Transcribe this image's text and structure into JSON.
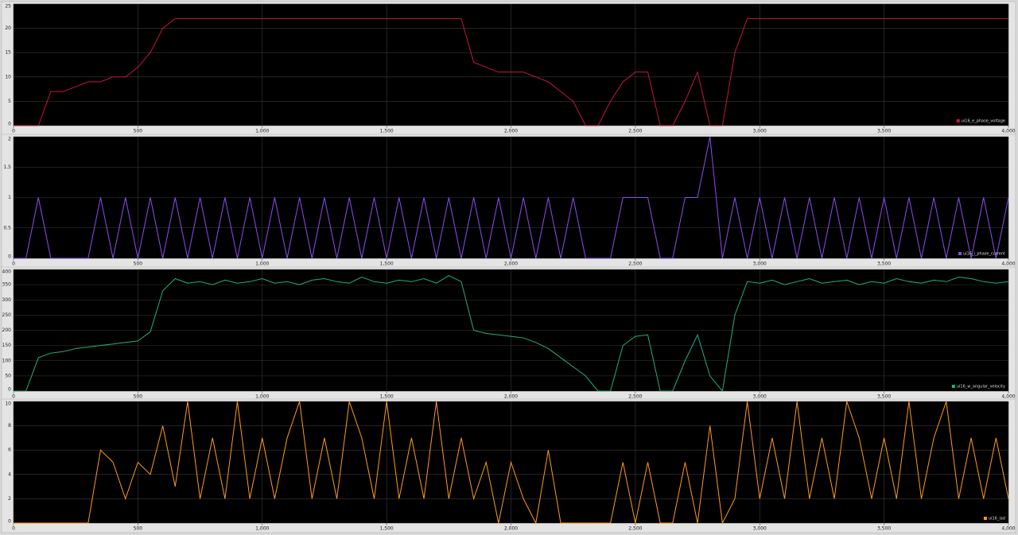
{
  "chart_data": [
    {
      "type": "line",
      "legend": "ui16_e_phase_voltage",
      "color": "#c8143c",
      "x": [
        0,
        50,
        100,
        150,
        200,
        250,
        300,
        350,
        400,
        450,
        500,
        550,
        600,
        650,
        700,
        750,
        800,
        850,
        900,
        950,
        1000,
        1050,
        1100,
        1150,
        1200,
        1250,
        1300,
        1350,
        1400,
        1450,
        1500,
        1550,
        1600,
        1650,
        1700,
        1750,
        1800,
        1850,
        1900,
        1950,
        2000,
        2050,
        2100,
        2150,
        2200,
        2250,
        2300,
        2350,
        2400,
        2450,
        2500,
        2550,
        2600,
        2650,
        2700,
        2750,
        2800,
        2850,
        2900,
        2950,
        3000,
        3050,
        3100,
        3150,
        3200,
        3250,
        3300,
        3350,
        3400,
        3450,
        3500,
        3550,
        3600,
        3650,
        3700,
        3750,
        3800,
        3850,
        3900,
        3950,
        4000
      ],
      "values": [
        0,
        0,
        0,
        7,
        7,
        8,
        9,
        9,
        10,
        10,
        12,
        15,
        20,
        22,
        22,
        22,
        22,
        22,
        22,
        22,
        22,
        22,
        22,
        22,
        22,
        22,
        22,
        22,
        22,
        22,
        22,
        22,
        22,
        22,
        22,
        22,
        22,
        13,
        12,
        11,
        11,
        11,
        10,
        9,
        7,
        5,
        0,
        0,
        5,
        9,
        11,
        11,
        0,
        0,
        5,
        11,
        0,
        0,
        15,
        22,
        22,
        22,
        22,
        22,
        22,
        22,
        22,
        22,
        22,
        22,
        22,
        22,
        22,
        22,
        22,
        22,
        22,
        22,
        22,
        22,
        22
      ],
      "xlim": [
        0,
        4000
      ],
      "xticks": [
        0,
        500,
        {
          "value": 1000,
          "label": "1,000"
        },
        {
          "value": 1500,
          "label": "1,500"
        },
        {
          "value": 2000,
          "label": "2,000"
        },
        {
          "value": 2500,
          "label": "2,500"
        },
        {
          "value": 3000,
          "label": "3,000"
        },
        {
          "value": 3500,
          "label": "3,500"
        },
        {
          "value": 4000,
          "label": "4,000"
        }
      ],
      "ylim": [
        0,
        25
      ],
      "yticks": [
        0,
        5,
        10,
        15,
        20,
        25
      ],
      "grid": true
    },
    {
      "type": "line",
      "legend": "ui16_i_phase_current",
      "color": "#8c4cf2",
      "x": [
        0,
        50,
        100,
        150,
        200,
        250,
        300,
        350,
        400,
        450,
        500,
        550,
        600,
        650,
        700,
        750,
        800,
        850,
        900,
        950,
        1000,
        1050,
        1100,
        1150,
        1200,
        1250,
        1300,
        1350,
        1400,
        1450,
        1500,
        1550,
        1600,
        1650,
        1700,
        1750,
        1800,
        1850,
        1900,
        1950,
        2000,
        2050,
        2100,
        2150,
        2200,
        2250,
        2300,
        2350,
        2400,
        2450,
        2500,
        2550,
        2600,
        2650,
        2700,
        2750,
        2800,
        2850,
        2900,
        2950,
        3000,
        3050,
        3100,
        3150,
        3200,
        3250,
        3300,
        3350,
        3400,
        3450,
        3500,
        3550,
        3600,
        3650,
        3700,
        3750,
        3800,
        3850,
        3900,
        3950,
        4000
      ],
      "values": [
        0,
        0,
        1,
        0,
        0,
        0,
        0,
        1,
        0,
        1,
        0,
        1,
        0,
        1,
        0,
        1,
        0,
        1,
        0,
        1,
        0,
        1,
        0,
        1,
        0,
        1,
        0,
        1,
        0,
        1,
        0,
        1,
        0,
        1,
        0,
        1,
        0,
        1,
        0,
        1,
        0,
        1,
        0,
        1,
        0,
        1,
        0,
        0,
        0,
        1,
        1,
        1,
        0,
        0,
        1,
        1,
        2,
        0,
        1,
        0,
        1,
        0,
        1,
        0,
        1,
        0,
        1,
        0,
        1,
        0,
        1,
        0,
        1,
        0,
        1,
        0,
        1,
        0,
        1,
        0,
        1
      ],
      "xlim": [
        0,
        4000
      ],
      "xticks": [
        0,
        500,
        {
          "value": 1000,
          "label": "1,000"
        },
        {
          "value": 1500,
          "label": "1,500"
        },
        {
          "value": 2000,
          "label": "2,000"
        },
        {
          "value": 2500,
          "label": "2,500"
        },
        {
          "value": 3000,
          "label": "3,000"
        },
        {
          "value": 3500,
          "label": "3,500"
        },
        {
          "value": 4000,
          "label": "4,000"
        }
      ],
      "ylim": [
        0,
        2
      ],
      "yticks": [
        0,
        0.5,
        1,
        1.5,
        2
      ],
      "grid": true
    },
    {
      "type": "line",
      "legend": "ui16_w_angular_velocity",
      "color": "#1fae8a",
      "x": [
        0,
        50,
        100,
        150,
        200,
        250,
        300,
        350,
        400,
        450,
        500,
        550,
        600,
        650,
        700,
        750,
        800,
        850,
        900,
        950,
        1000,
        1050,
        1100,
        1150,
        1200,
        1250,
        1300,
        1350,
        1400,
        1450,
        1500,
        1550,
        1600,
        1650,
        1700,
        1750,
        1800,
        1850,
        1900,
        1950,
        2000,
        2050,
        2100,
        2150,
        2200,
        2250,
        2300,
        2350,
        2400,
        2450,
        2500,
        2550,
        2600,
        2650,
        2700,
        2750,
        2800,
        2850,
        2900,
        2950,
        3000,
        3050,
        3100,
        3150,
        3200,
        3250,
        3300,
        3350,
        3400,
        3450,
        3500,
        3550,
        3600,
        3650,
        3700,
        3750,
        3800,
        3850,
        3900,
        3950,
        4000
      ],
      "values": [
        0,
        0,
        110,
        125,
        130,
        140,
        145,
        150,
        155,
        160,
        165,
        195,
        330,
        370,
        355,
        360,
        350,
        365,
        355,
        360,
        370,
        355,
        360,
        350,
        365,
        370,
        360,
        355,
        375,
        360,
        355,
        365,
        360,
        370,
        355,
        380,
        360,
        200,
        190,
        185,
        180,
        175,
        160,
        140,
        110,
        80,
        50,
        0,
        0,
        150,
        180,
        185,
        0,
        0,
        100,
        185,
        50,
        0,
        250,
        360,
        355,
        365,
        350,
        360,
        370,
        355,
        360,
        365,
        350,
        360,
        355,
        370,
        360,
        355,
        365,
        360,
        375,
        370,
        360,
        355,
        360
      ],
      "xlim": [
        0,
        4000
      ],
      "xticks": [
        0,
        500,
        {
          "value": 1000,
          "label": "1,000"
        },
        {
          "value": 1500,
          "label": "1,500"
        },
        {
          "value": 2000,
          "label": "2,000"
        },
        {
          "value": 2500,
          "label": "2,500"
        },
        {
          "value": 3000,
          "label": "3,000"
        },
        {
          "value": 3500,
          "label": "3,500"
        },
        {
          "value": 4000,
          "label": "4,000"
        }
      ],
      "ylim": [
        0,
        400
      ],
      "yticks": [
        0,
        50,
        100,
        150,
        200,
        250,
        300,
        350,
        400
      ],
      "grid": true
    },
    {
      "type": "line",
      "legend": "ui16_iad",
      "color": "#ff9a1a",
      "x": [
        0,
        50,
        100,
        150,
        200,
        250,
        300,
        350,
        400,
        450,
        500,
        550,
        600,
        650,
        700,
        750,
        800,
        850,
        900,
        950,
        1000,
        1050,
        1100,
        1150,
        1200,
        1250,
        1300,
        1350,
        1400,
        1450,
        1500,
        1550,
        1600,
        1650,
        1700,
        1750,
        1800,
        1850,
        1900,
        1950,
        2000,
        2050,
        2100,
        2150,
        2200,
        2250,
        2300,
        2350,
        2400,
        2450,
        2500,
        2550,
        2600,
        2650,
        2700,
        2750,
        2800,
        2850,
        2900,
        2950,
        3000,
        3050,
        3100,
        3150,
        3200,
        3250,
        3300,
        3350,
        3400,
        3450,
        3500,
        3550,
        3600,
        3650,
        3700,
        3750,
        3800,
        3850,
        3900,
        3950,
        4000
      ],
      "values": [
        0,
        0,
        0,
        0,
        0,
        0,
        0,
        6,
        5,
        2,
        5,
        4,
        8,
        3,
        10,
        2,
        7,
        2,
        10,
        2,
        7,
        2,
        7,
        10,
        2,
        7,
        2,
        10,
        7,
        2,
        10,
        2,
        7,
        2,
        10,
        2,
        7,
        2,
        5,
        0,
        5,
        2,
        0,
        6,
        0,
        0,
        0,
        0,
        0,
        5,
        0,
        5,
        0,
        0,
        5,
        0,
        8,
        0,
        2,
        10,
        2,
        7,
        2,
        10,
        2,
        7,
        2,
        10,
        7,
        2,
        7,
        2,
        10,
        2,
        7,
        10,
        2,
        7,
        2,
        7,
        2
      ],
      "xlim": [
        0,
        4000
      ],
      "xticks": [
        0,
        500,
        {
          "value": 1000,
          "label": "1,000"
        },
        {
          "value": 1500,
          "label": "1,500"
        },
        {
          "value": 2000,
          "label": "2,000"
        },
        {
          "value": 2500,
          "label": "2,500"
        },
        {
          "value": 3000,
          "label": "3,000"
        },
        {
          "value": 3500,
          "label": "3,500"
        },
        {
          "value": 4000,
          "label": "4,000"
        }
      ],
      "ylim": [
        0,
        10
      ],
      "yticks": [
        0,
        2,
        4,
        6,
        8,
        10
      ],
      "grid": true
    }
  ]
}
